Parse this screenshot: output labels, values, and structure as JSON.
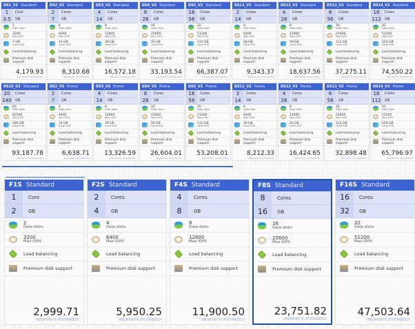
{
  "price_caption": "INR/MONTH (ESTIMATED)",
  "labels": {
    "core": "Core",
    "cores": "Cores",
    "gb": "GB",
    "data_disks": "Data disks",
    "iops": "Max IOPS",
    "ssd_unit": "GB",
    "ssd": "Local SSD",
    "lb": "Load balancing",
    "pd": "Premium disk support"
  },
  "colors": {
    "header": "#3d63d0",
    "stats": "#dde2f6",
    "selected_border": "#1f4f9f"
  },
  "rows": [
    {
      "tiles": [
        {
          "name": "DS1_V2",
          "tier": "Standard",
          "cores": "1",
          "ram": "3.5",
          "disks": "2",
          "iops": "3200",
          "ssd": "7",
          "price": "4,179.93"
        },
        {
          "name": "DS2_V2",
          "tier": "Standard",
          "cores": "2",
          "ram": "7",
          "disks": "4",
          "iops": "6400",
          "ssd": "14",
          "price": "8,310.68"
        },
        {
          "name": "DS3_V2",
          "tier": "Standard",
          "cores": "4",
          "ram": "14",
          "disks": "8",
          "iops": "12800",
          "ssd": "28",
          "price": "16,572.18"
        },
        {
          "name": "DS4_V2",
          "tier": "Standard",
          "cores": "8",
          "ram": "28",
          "disks": "16",
          "iops": "25600",
          "ssd": "56",
          "price": "33,193.54"
        },
        {
          "name": "DS5_V2",
          "tier": "Standard",
          "cores": "16",
          "ram": "56",
          "disks": "32",
          "iops": "51200",
          "ssd": "112",
          "price": "66,387.07"
        },
        {
          "name": "DS11_V2",
          "tier": "Standard",
          "cores": "2",
          "ram": "14",
          "disks": "4",
          "iops": "6400",
          "ssd": "28",
          "price": "9,343.37"
        },
        {
          "name": "DS12_V2",
          "tier": "Standard",
          "cores": "4",
          "ram": "28",
          "disks": "8",
          "iops": "12800",
          "ssd": "56",
          "price": "18,637.56"
        },
        {
          "name": "DS13_V2",
          "tier": "Standard",
          "cores": "8",
          "ram": "56",
          "disks": "16",
          "iops": "25600",
          "ssd": "112",
          "price": "37,275.11"
        },
        {
          "name": "DS14_V2",
          "tier": "Standard",
          "cores": "16",
          "ram": "112",
          "disks": "32",
          "iops": "51200",
          "ssd": "224",
          "price": "74,550.22"
        }
      ]
    },
    {
      "tiles": [
        {
          "name": "DS15_V2",
          "tier": "Standard",
          "cores": "20",
          "ram": "140",
          "disks": "40",
          "iops": "62500",
          "ssd": "280",
          "price": "93,187.78"
        },
        {
          "name": "DS2_V2",
          "tier": "Promo",
          "cores": "2",
          "ram": "7",
          "disks": "4",
          "iops": "6400",
          "ssd": "14",
          "price": "6,638.71"
        },
        {
          "name": "DS3_V2",
          "tier": "Promo",
          "cores": "4",
          "ram": "14",
          "disks": "8",
          "iops": "12800",
          "ssd": "28",
          "price": "13,326.59"
        },
        {
          "name": "DS4_V2",
          "tier": "Promo",
          "cores": "8",
          "ram": "28",
          "disks": "16",
          "iops": "25600",
          "ssd": "56",
          "price": "26,604.01"
        },
        {
          "name": "DS5_V2",
          "tier": "Promo",
          "cores": "16",
          "ram": "56",
          "disks": "32",
          "iops": "51200",
          "ssd": "112",
          "price": "53,208.01"
        },
        {
          "name": "DS11_V2",
          "tier": "Promo",
          "cores": "2",
          "ram": "14",
          "disks": "4",
          "iops": "6400",
          "ssd": "28",
          "price": "8,212.33"
        },
        {
          "name": "DS12_V2",
          "tier": "Promo",
          "cores": "4",
          "ram": "28",
          "disks": "8",
          "iops": "12800",
          "ssd": "56",
          "price": "16,424.65"
        },
        {
          "name": "DS13_V2",
          "tier": "Promo",
          "cores": "8",
          "ram": "56",
          "disks": "16",
          "iops": "25600",
          "ssd": "112",
          "price": "32,898.48"
        },
        {
          "name": "DS14_V2",
          "tier": "Promo",
          "cores": "16",
          "ram": "112",
          "disks": "32",
          "iops": "51200",
          "ssd": "224",
          "price": "65,796.97"
        }
      ]
    },
    {
      "tiles": [
        {
          "name": "F1S",
          "tier": "Standard",
          "cores": "1",
          "ram": "2",
          "disks": "2",
          "iops": "3200",
          "price": "2,999.71"
        },
        {
          "name": "F2S",
          "tier": "Standard",
          "cores": "2",
          "ram": "4",
          "disks": "4",
          "iops": "6400",
          "price": "5,950.25"
        },
        {
          "name": "F4S",
          "tier": "Standard",
          "cores": "4",
          "ram": "8",
          "disks": "8",
          "iops": "12800",
          "price": "11,900.50"
        },
        {
          "name": "F8S",
          "tier": "Standard",
          "cores": "8",
          "ram": "16",
          "disks": "16",
          "iops": "25600",
          "price": "23,751.82",
          "selected": true
        },
        {
          "name": "F16S",
          "tier": "Standard",
          "cores": "16",
          "ram": "32",
          "disks": "32",
          "iops": "51200",
          "price": "47,503.64"
        }
      ]
    }
  ]
}
